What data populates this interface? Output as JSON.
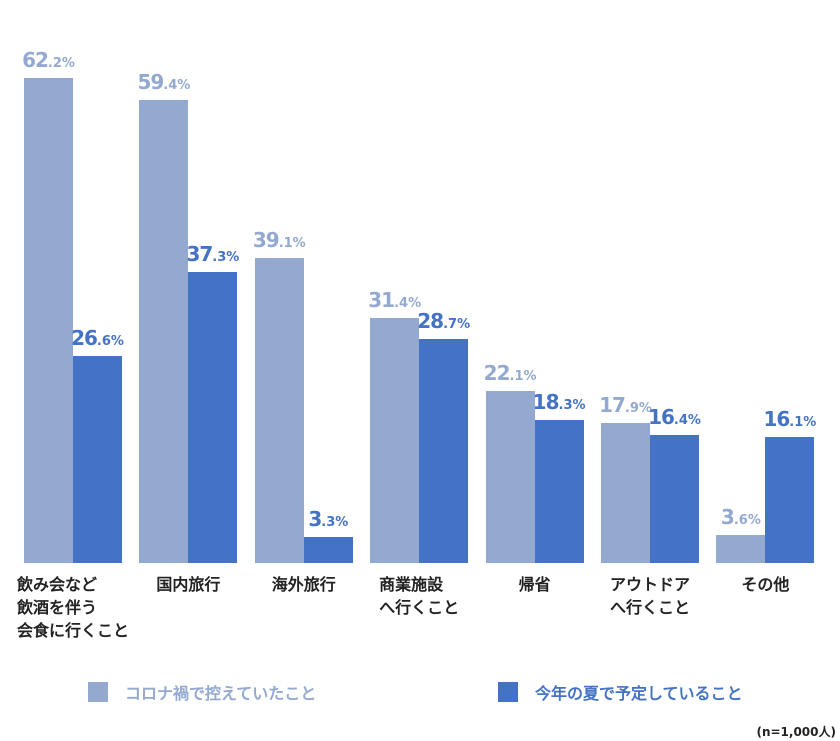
{
  "chart_data": {
    "type": "bar",
    "categories": [
      [
        "飲み会など",
        "飲酒を伴う",
        "会食に行くこと"
      ],
      [
        "国内旅行"
      ],
      [
        "海外旅行"
      ],
      [
        "商業施設",
        "へ行くこと"
      ],
      [
        "帰省"
      ],
      [
        "アウトドア",
        "へ行くこと"
      ],
      [
        "その他"
      ]
    ],
    "series": [
      {
        "name": "コロナ禍で控えていたこと",
        "color": "#94a9d0",
        "values": [
          62.2,
          59.4,
          39.1,
          31.4,
          22.1,
          17.9,
          3.6
        ]
      },
      {
        "name": "今年の夏で予定していること",
        "color": "#4472c4",
        "values": [
          26.6,
          37.3,
          3.3,
          28.7,
          18.3,
          16.4,
          16.1
        ]
      }
    ],
    "value_labels": [
      [
        "62.2%",
        "59.4%",
        "39.1%",
        "31.4%",
        "22.1%",
        "17.9%",
        "3.6%"
      ],
      [
        "26.6%",
        "37.3%",
        "3.3%",
        "28.7%",
        "18.3%",
        "16.4%",
        "16.1%"
      ]
    ],
    "title": "",
    "xlabel": "",
    "ylabel": "",
    "ylim": [
      0,
      62.2
    ],
    "grid": false,
    "legend_position": "bottom",
    "note": "(n=1,000人)"
  }
}
